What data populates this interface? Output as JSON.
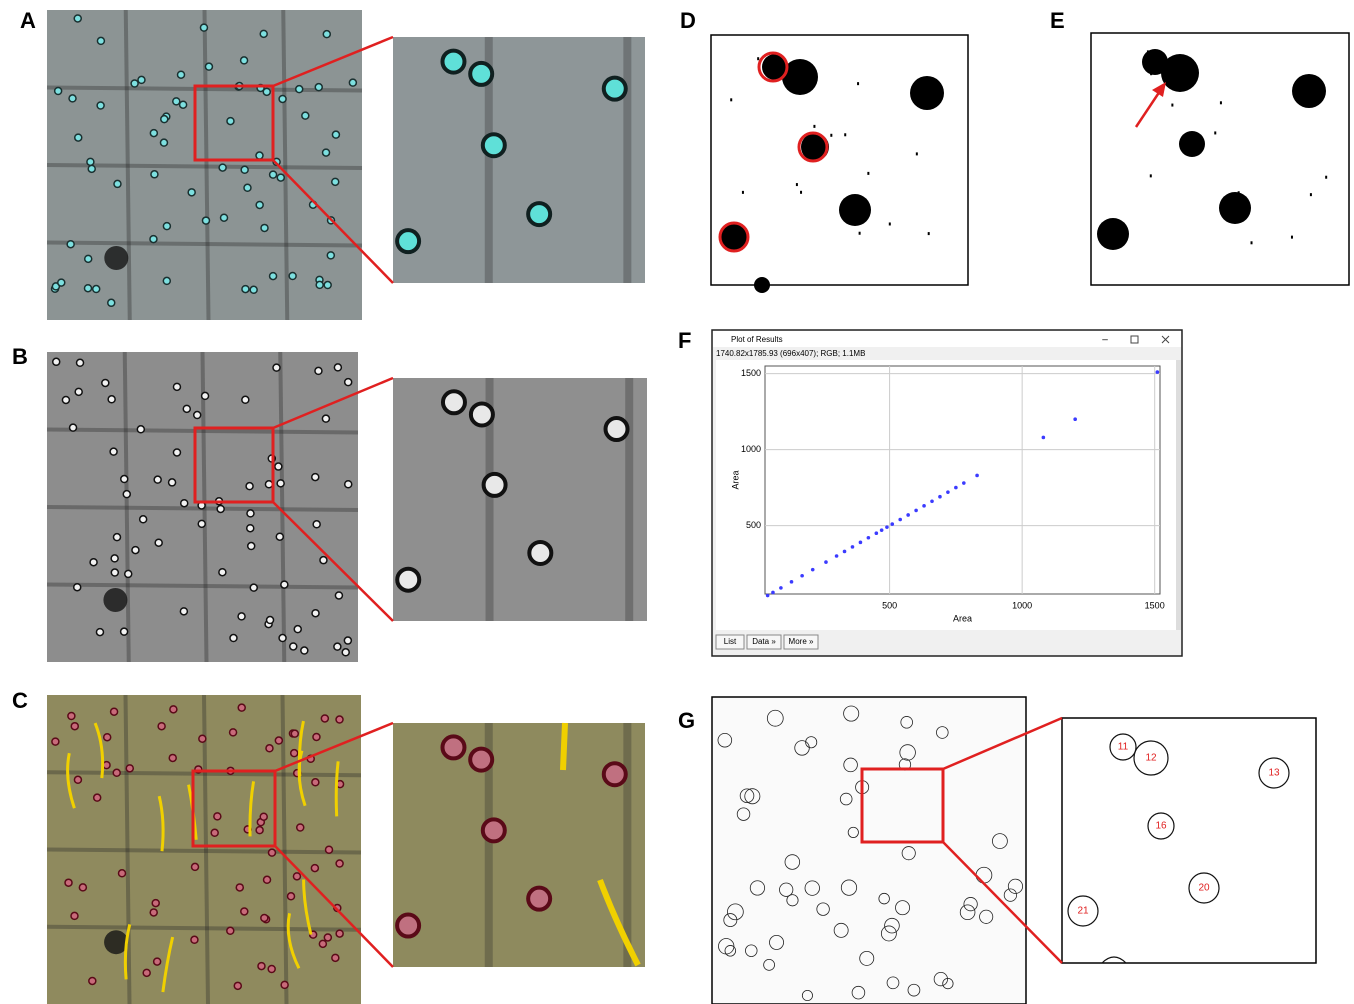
{
  "panel_labels": [
    "A",
    "B",
    "C",
    "D",
    "E",
    "F",
    "G"
  ],
  "plot_window": {
    "title": "Plot of Results",
    "info": "1740.82x1785.93  (696x407); RGB; 1.1MB",
    "buttons": [
      "List",
      "Data »",
      "More »"
    ],
    "chart": {
      "type": "scatter",
      "x_label": "Area",
      "y_label": "Area",
      "xlim": [
        30,
        1520
      ],
      "ylim": [
        50,
        1550
      ],
      "xticks": [
        500,
        1000,
        1500
      ],
      "yticks": [
        500,
        1000,
        1500
      ],
      "grid": true,
      "color": "#3b3bff",
      "x": [
        40,
        60,
        90,
        130,
        170,
        210,
        260,
        300,
        330,
        360,
        390,
        420,
        450,
        470,
        490,
        510,
        540,
        570,
        600,
        630,
        660,
        690,
        720,
        750,
        780,
        830,
        1080,
        1200,
        1510
      ],
      "y": [
        40,
        60,
        90,
        130,
        170,
        210,
        260,
        300,
        330,
        360,
        390,
        420,
        450,
        470,
        490,
        510,
        540,
        570,
        600,
        630,
        660,
        690,
        720,
        750,
        780,
        830,
        1080,
        1200,
        1510
      ]
    }
  },
  "inset_labels": [
    "11",
    "12",
    "13",
    "16",
    "20",
    "21"
  ]
}
